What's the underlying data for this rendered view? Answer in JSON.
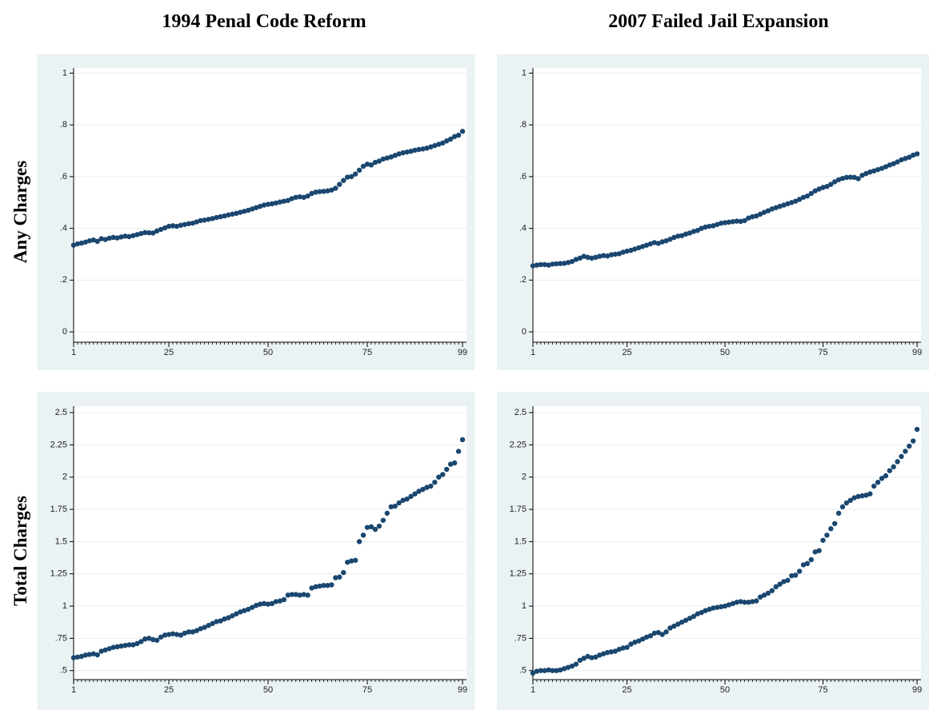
{
  "columns": [
    "1994 Penal Code Reform",
    "2007 Failed Jail Expansion"
  ],
  "rows": [
    "Any Charges",
    "Total Charges"
  ],
  "chart_data": [
    {
      "type": "scatter",
      "color": "#1a476f",
      "grid": true,
      "x": [
        1,
        2,
        3,
        4,
        5,
        6,
        7,
        8,
        9,
        10,
        11,
        12,
        13,
        14,
        15,
        16,
        17,
        18,
        19,
        20,
        21,
        22,
        23,
        24,
        25,
        26,
        27,
        28,
        29,
        30,
        31,
        32,
        33,
        34,
        35,
        36,
        37,
        38,
        39,
        40,
        41,
        42,
        43,
        44,
        45,
        46,
        47,
        48,
        49,
        50,
        51,
        52,
        53,
        54,
        55,
        56,
        57,
        58,
        59,
        60,
        61,
        62,
        63,
        64,
        65,
        66,
        67,
        68,
        69,
        70,
        71,
        72,
        73,
        74,
        75,
        76,
        77,
        78,
        79,
        80,
        81,
        82,
        83,
        84,
        85,
        86,
        87,
        88,
        89,
        90,
        91,
        92,
        93,
        94,
        95,
        96,
        97,
        98,
        99
      ],
      "values": [
        0.335,
        0.34,
        0.343,
        0.347,
        0.352,
        0.355,
        0.35,
        0.36,
        0.357,
        0.362,
        0.365,
        0.363,
        0.367,
        0.37,
        0.368,
        0.372,
        0.376,
        0.38,
        0.384,
        0.383,
        0.382,
        0.39,
        0.396,
        0.402,
        0.408,
        0.41,
        0.408,
        0.412,
        0.415,
        0.418,
        0.42,
        0.425,
        0.43,
        0.432,
        0.435,
        0.438,
        0.442,
        0.445,
        0.448,
        0.452,
        0.455,
        0.458,
        0.462,
        0.466,
        0.47,
        0.475,
        0.48,
        0.485,
        0.49,
        0.493,
        0.495,
        0.498,
        0.502,
        0.505,
        0.508,
        0.515,
        0.52,
        0.522,
        0.52,
        0.525,
        0.535,
        0.54,
        0.542,
        0.543,
        0.545,
        0.548,
        0.555,
        0.57,
        0.585,
        0.598,
        0.6,
        0.61,
        0.625,
        0.64,
        0.648,
        0.645,
        0.655,
        0.66,
        0.668,
        0.672,
        0.676,
        0.682,
        0.688,
        0.692,
        0.695,
        0.698,
        0.702,
        0.705,
        0.707,
        0.71,
        0.715,
        0.72,
        0.725,
        0.73,
        0.738,
        0.745,
        0.755,
        0.76,
        0.775
      ],
      "xlim": [
        1,
        100
      ],
      "xticks": [
        1,
        25,
        50,
        75,
        99
      ],
      "ylim": [
        -0.04,
        1.02
      ],
      "yticks": [
        0,
        {
          "value": 0.2,
          "label": ".2"
        },
        {
          "value": 0.4,
          "label": ".4"
        },
        {
          "value": 0.6,
          "label": ".6"
        },
        {
          "value": 0.8,
          "label": ".8"
        },
        1
      ]
    },
    {
      "type": "scatter",
      "color": "#1a476f",
      "grid": true,
      "x": [
        1,
        2,
        3,
        4,
        5,
        6,
        7,
        8,
        9,
        10,
        11,
        12,
        13,
        14,
        15,
        16,
        17,
        18,
        19,
        20,
        21,
        22,
        23,
        24,
        25,
        26,
        27,
        28,
        29,
        30,
        31,
        32,
        33,
        34,
        35,
        36,
        37,
        38,
        39,
        40,
        41,
        42,
        43,
        44,
        45,
        46,
        47,
        48,
        49,
        50,
        51,
        52,
        53,
        54,
        55,
        56,
        57,
        58,
        59,
        60,
        61,
        62,
        63,
        64,
        65,
        66,
        67,
        68,
        69,
        70,
        71,
        72,
        73,
        74,
        75,
        76,
        77,
        78,
        79,
        80,
        81,
        82,
        83,
        84,
        85,
        86,
        87,
        88,
        89,
        90,
        91,
        92,
        93,
        94,
        95,
        96,
        97,
        98,
        99
      ],
      "values": [
        0.255,
        0.258,
        0.26,
        0.26,
        0.258,
        0.262,
        0.263,
        0.264,
        0.265,
        0.268,
        0.272,
        0.28,
        0.285,
        0.292,
        0.288,
        0.285,
        0.288,
        0.292,
        0.295,
        0.293,
        0.298,
        0.3,
        0.302,
        0.308,
        0.312,
        0.315,
        0.32,
        0.325,
        0.33,
        0.335,
        0.34,
        0.345,
        0.342,
        0.348,
        0.352,
        0.358,
        0.365,
        0.37,
        0.372,
        0.378,
        0.382,
        0.388,
        0.392,
        0.4,
        0.405,
        0.408,
        0.41,
        0.415,
        0.42,
        0.422,
        0.424,
        0.426,
        0.428,
        0.427,
        0.43,
        0.44,
        0.445,
        0.448,
        0.455,
        0.462,
        0.468,
        0.475,
        0.48,
        0.485,
        0.49,
        0.495,
        0.5,
        0.505,
        0.512,
        0.52,
        0.525,
        0.535,
        0.545,
        0.552,
        0.558,
        0.562,
        0.57,
        0.58,
        0.588,
        0.593,
        0.597,
        0.598,
        0.597,
        0.592,
        0.605,
        0.612,
        0.618,
        0.622,
        0.627,
        0.632,
        0.638,
        0.645,
        0.65,
        0.657,
        0.665,
        0.67,
        0.675,
        0.683,
        0.688
      ],
      "xlim": [
        1,
        100
      ],
      "xticks": [
        1,
        25,
        50,
        75,
        99
      ],
      "ylim": [
        -0.04,
        1.02
      ],
      "yticks": [
        0,
        {
          "value": 0.2,
          "label": ".2"
        },
        {
          "value": 0.4,
          "label": ".4"
        },
        {
          "value": 0.6,
          "label": ".6"
        },
        {
          "value": 0.8,
          "label": ".8"
        },
        1
      ]
    },
    {
      "type": "scatter",
      "color": "#1a476f",
      "grid": true,
      "x": [
        1,
        2,
        3,
        4,
        5,
        6,
        7,
        8,
        9,
        10,
        11,
        12,
        13,
        14,
        15,
        16,
        17,
        18,
        19,
        20,
        21,
        22,
        23,
        24,
        25,
        26,
        27,
        28,
        29,
        30,
        31,
        32,
        33,
        34,
        35,
        36,
        37,
        38,
        39,
        40,
        41,
        42,
        43,
        44,
        45,
        46,
        47,
        48,
        49,
        50,
        51,
        52,
        53,
        54,
        55,
        56,
        57,
        58,
        59,
        60,
        61,
        62,
        63,
        64,
        65,
        66,
        67,
        68,
        69,
        70,
        71,
        72,
        73,
        74,
        75,
        76,
        77,
        78,
        79,
        80,
        81,
        82,
        83,
        84,
        85,
        86,
        87,
        88,
        89,
        90,
        91,
        92,
        93,
        94,
        95,
        96,
        97,
        98,
        99
      ],
      "values": [
        0.6,
        0.605,
        0.61,
        0.62,
        0.625,
        0.63,
        0.622,
        0.65,
        0.66,
        0.67,
        0.68,
        0.685,
        0.69,
        0.695,
        0.7,
        0.7,
        0.71,
        0.725,
        0.745,
        0.75,
        0.74,
        0.735,
        0.76,
        0.775,
        0.78,
        0.785,
        0.78,
        0.775,
        0.79,
        0.8,
        0.8,
        0.81,
        0.825,
        0.835,
        0.85,
        0.865,
        0.88,
        0.885,
        0.9,
        0.91,
        0.925,
        0.94,
        0.955,
        0.965,
        0.975,
        0.99,
        1.005,
        1.015,
        1.02,
        1.015,
        1.02,
        1.035,
        1.04,
        1.05,
        1.085,
        1.09,
        1.09,
        1.085,
        1.09,
        1.085,
        1.14,
        1.15,
        1.155,
        1.16,
        1.16,
        1.165,
        1.22,
        1.225,
        1.26,
        1.34,
        1.35,
        1.355,
        1.5,
        1.55,
        1.61,
        1.615,
        1.595,
        1.62,
        1.665,
        1.72,
        1.77,
        1.775,
        1.8,
        1.82,
        1.83,
        1.85,
        1.87,
        1.89,
        1.905,
        1.92,
        1.93,
        1.96,
        2.0,
        2.02,
        2.06,
        2.1,
        2.11,
        2.2,
        2.29
      ],
      "xlim": [
        1,
        100
      ],
      "xticks": [
        1,
        25,
        50,
        75,
        99
      ],
      "ylim": [
        0.43,
        2.55
      ],
      "yticks": [
        {
          "value": 0.5,
          "label": ".5"
        },
        {
          "value": 0.75,
          "label": ".75"
        },
        1,
        1.25,
        1.5,
        1.75,
        2,
        2.25,
        2.5
      ]
    },
    {
      "type": "scatter",
      "color": "#1a476f",
      "grid": true,
      "x": [
        1,
        2,
        3,
        4,
        5,
        6,
        7,
        8,
        9,
        10,
        11,
        12,
        13,
        14,
        15,
        16,
        17,
        18,
        19,
        20,
        21,
        22,
        23,
        24,
        25,
        26,
        27,
        28,
        29,
        30,
        31,
        32,
        33,
        34,
        35,
        36,
        37,
        38,
        39,
        40,
        41,
        42,
        43,
        44,
        45,
        46,
        47,
        48,
        49,
        50,
        51,
        52,
        53,
        54,
        55,
        56,
        57,
        58,
        59,
        60,
        61,
        62,
        63,
        64,
        65,
        66,
        67,
        68,
        69,
        70,
        71,
        72,
        73,
        74,
        75,
        76,
        77,
        78,
        79,
        80,
        81,
        82,
        83,
        84,
        85,
        86,
        87,
        88,
        89,
        90,
        91,
        92,
        93,
        94,
        95,
        96,
        97,
        98,
        99
      ],
      "values": [
        0.48,
        0.495,
        0.5,
        0.5,
        0.505,
        0.5,
        0.5,
        0.505,
        0.515,
        0.525,
        0.535,
        0.55,
        0.58,
        0.595,
        0.61,
        0.6,
        0.605,
        0.62,
        0.63,
        0.64,
        0.645,
        0.65,
        0.665,
        0.675,
        0.68,
        0.705,
        0.72,
        0.73,
        0.745,
        0.76,
        0.77,
        0.79,
        0.795,
        0.78,
        0.8,
        0.83,
        0.845,
        0.86,
        0.875,
        0.89,
        0.905,
        0.92,
        0.94,
        0.95,
        0.965,
        0.975,
        0.985,
        0.99,
        0.995,
        1.0,
        1.01,
        1.02,
        1.03,
        1.035,
        1.03,
        1.03,
        1.035,
        1.04,
        1.07,
        1.085,
        1.1,
        1.12,
        1.15,
        1.17,
        1.19,
        1.2,
        1.235,
        1.24,
        1.27,
        1.32,
        1.33,
        1.36,
        1.42,
        1.43,
        1.51,
        1.55,
        1.6,
        1.64,
        1.72,
        1.77,
        1.8,
        1.82,
        1.84,
        1.85,
        1.855,
        1.86,
        1.87,
        1.93,
        1.96,
        1.99,
        2.01,
        2.05,
        2.08,
        2.12,
        2.16,
        2.2,
        2.24,
        2.28,
        2.37
      ],
      "xlim": [
        1,
        100
      ],
      "xticks": [
        1,
        25,
        50,
        75,
        99
      ],
      "ylim": [
        0.43,
        2.55
      ],
      "yticks": [
        {
          "value": 0.5,
          "label": ".5"
        },
        {
          "value": 0.75,
          "label": ".75"
        },
        1,
        1.25,
        1.5,
        1.75,
        2,
        2.25,
        2.5
      ]
    }
  ]
}
